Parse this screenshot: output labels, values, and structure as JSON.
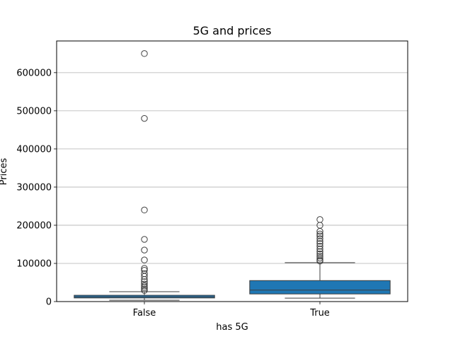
{
  "chart_data": {
    "type": "box",
    "title": "5G and prices",
    "xlabel": "has 5G",
    "ylabel": "Prices",
    "ylim": [
      0,
      683000
    ],
    "yticks": [
      0,
      100000,
      200000,
      300000,
      400000,
      500000,
      600000
    ],
    "ytick_labels": [
      "0",
      "100000",
      "200000",
      "300000",
      "400000",
      "500000",
      "600000"
    ],
    "grid": "y",
    "box_color": "#1f77b4",
    "categories": [
      "False",
      "True"
    ],
    "boxes": [
      {
        "category": "False",
        "whisker_low": 3500,
        "q1": 9500,
        "median": 12500,
        "q3": 16500,
        "whisker_high": 26000,
        "outliers": [
          650000,
          480000,
          240000,
          163000,
          135000,
          109000,
          87000,
          82000,
          73000,
          66000,
          58000,
          52000,
          46000,
          41000,
          37000,
          33000,
          29000
        ]
      },
      {
        "category": "True",
        "whisker_low": 9000,
        "q1": 20000,
        "median": 30000,
        "q3": 55000,
        "whisker_high": 102000,
        "outliers": [
          215000,
          200000,
          184000,
          177000,
          172000,
          165000,
          158000,
          152000,
          145000,
          138000,
          131000,
          125000,
          119000,
          114000,
          109000,
          106000
        ]
      }
    ]
  }
}
